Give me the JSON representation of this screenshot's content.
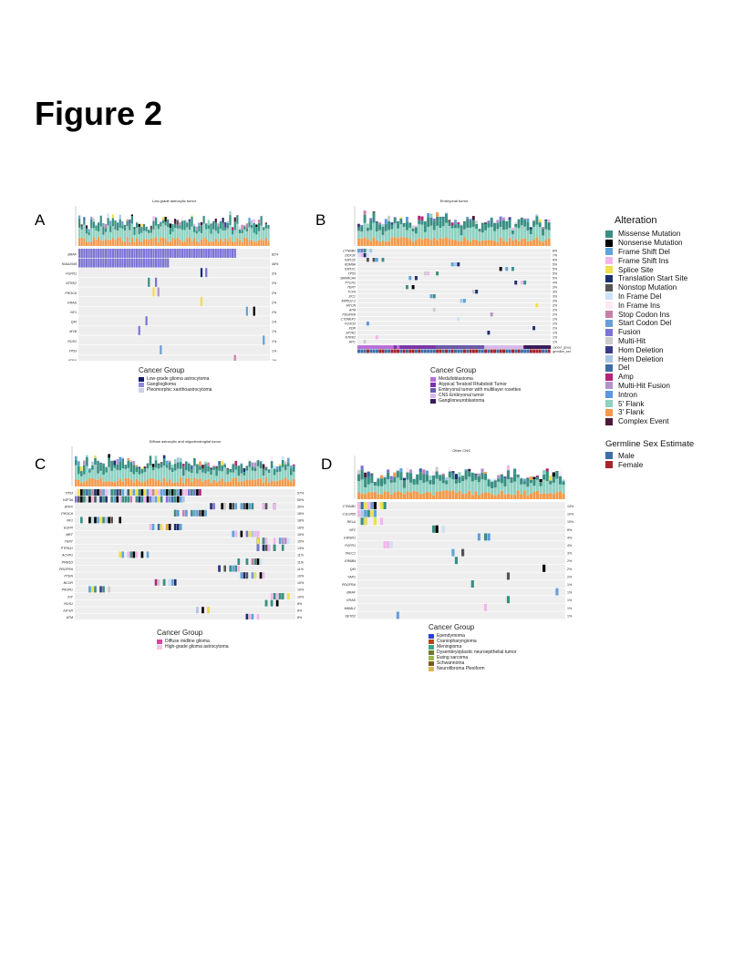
{
  "figure_title": "Figure 2",
  "alteration_legend": {
    "title": "Alteration",
    "items": [
      {
        "label": "Missense Mutation",
        "color": "#3a8f83"
      },
      {
        "label": "Nonsense Mutation",
        "color": "#000000"
      },
      {
        "label": "Frame Shift Del",
        "color": "#5fa3d8"
      },
      {
        "label": "Frame Shift Ins",
        "color": "#f3b6ea"
      },
      {
        "label": "Splice Site",
        "color": "#f0e04a"
      },
      {
        "label": "Translation Start Site",
        "color": "#1b2f6e"
      },
      {
        "label": "Nonstop Mutation",
        "color": "#555555"
      },
      {
        "label": "In Frame Del",
        "color": "#cde2f7"
      },
      {
        "label": "In Frame Ins",
        "color": "#fde8f4"
      },
      {
        "label": "Stop Codon Ins",
        "color": "#c97fa8"
      },
      {
        "label": "Start Codon Del",
        "color": "#6a9fd6"
      },
      {
        "label": "Fusion",
        "color": "#7b74d6"
      },
      {
        "label": "Multi-Hit",
        "color": "#cccccc"
      },
      {
        "label": "Hom Deletion",
        "color": "#3a3b8a"
      },
      {
        "label": "Hem Deletion",
        "color": "#a7c6e4"
      },
      {
        "label": "Del",
        "color": "#3c6ba8"
      },
      {
        "label": "Amp",
        "color": "#b2237a"
      },
      {
        "label": "Multi-Hit Fusion",
        "color": "#b392c9"
      },
      {
        "label": "Intron",
        "color": "#5a98e0"
      },
      {
        "label": "5' Flank",
        "color": "#8fd1c2"
      },
      {
        "label": "3' Flank",
        "color": "#f39a4c"
      },
      {
        "label": "Complex Event",
        "color": "#4b1a3a"
      }
    ]
  },
  "sex_legend": {
    "title": "Germline Sex Estimate",
    "items": [
      {
        "label": "Male",
        "color": "#3e6ea8"
      },
      {
        "label": "Female",
        "color": "#a4262c"
      }
    ]
  },
  "panels": [
    {
      "letter": "A",
      "title": "Low-grade astrocytic tumor",
      "n": 80,
      "genes": [
        "BRAF",
        "KIAA1549",
        "FGFR1",
        "NTRK2",
        "PIK3CA",
        "KRAS",
        "NF1",
        "QKI",
        "MYB",
        "ROS1",
        "TP53",
        "ATRX",
        "FGFR2"
      ],
      "freqs": [
        "82%",
        "48%",
        "3%",
        "2%",
        "2%",
        "2%",
        "2%",
        "1%",
        "1%",
        "1%",
        "1%",
        "1%",
        "1%"
      ],
      "track_labels": [
        "cancer_group",
        "germline_sex_estimate"
      ],
      "cancer_group_title": "Cancer Group",
      "cancer_groups": [
        {
          "label": "Low-grade glioma astrocytoma",
          "color": "#12196b"
        },
        {
          "label": "Ganglioglioma",
          "color": "#8f8ae0"
        },
        {
          "label": "Pleomorphic xanthoastrocytoma",
          "color": "#cfcfe6"
        }
      ]
    },
    {
      "letter": "B",
      "title": "Embryonal tumor",
      "n": 64,
      "genes": [
        "CTNNB1",
        "DDX3X",
        "KMT2D",
        "KDM6A",
        "KMT2C",
        "TP53",
        "SMARCA4",
        "PTCH1",
        "TERT",
        "TCF4",
        "ZIC1",
        "MIR512-2",
        "MYCN",
        "ATM",
        "PDGFRA",
        "CTDNEP1",
        "FOXO3",
        "KDR",
        "SPTA1",
        "NTRK2",
        "APC"
      ],
      "freqs": [
        "8%",
        "7%",
        "6%",
        "5%",
        "5%",
        "5%",
        "5%",
        "4%",
        "3%",
        "3%",
        "3%",
        "3%",
        "2%",
        "2%",
        "2%",
        "2%",
        "2%",
        "2%",
        "1%",
        "1%",
        "1%"
      ],
      "track_labels": [
        "cancer_group",
        "germline_sex_estimate"
      ],
      "cancer_group_title": "Cancer Group",
      "cancer_groups": [
        {
          "label": "Medulloblastoma",
          "color": "#b86fd6"
        },
        {
          "label": "Atypical Teratoid Rhabdoid Tumor",
          "color": "#7a35a8"
        },
        {
          "label": "Embryonal tumor with multilayer rosettes",
          "color": "#6a5aa8"
        },
        {
          "label": "CNS Embryonal tumor",
          "color": "#d8b8e8"
        },
        {
          "label": "Ganglioneuroblastoma",
          "color": "#3a1a5a"
        }
      ]
    },
    {
      "letter": "C",
      "title": "Diffuse astrocytic and oligodendroglial tumor",
      "n": 80,
      "genes": [
        "TP53",
        "H3F3A",
        "ATRX",
        "PIK3CA",
        "NF1",
        "EGFR",
        "MET",
        "TERT",
        "PTPN11",
        "ACVR1",
        "PPM1D",
        "PDGFRA",
        "PTEN",
        "BCOR",
        "PIK3R1",
        "KIT",
        "ROS1",
        "IGF1R",
        "ATM",
        "NTRK3"
      ],
      "freqs": [
        "57%",
        "50%",
        "30%",
        "18%",
        "18%",
        "16%",
        "15%",
        "15%",
        "13%",
        "11%",
        "11%",
        "11%",
        "10%",
        "10%",
        "10%",
        "10%",
        "8%",
        "8%",
        "8%",
        "7%"
      ],
      "track_labels": [
        "cancer_group",
        "germline_sex_estimate"
      ],
      "cancer_group_title": "Cancer Group",
      "cancer_groups": [
        {
          "label": "Diffuse midline glioma",
          "color": "#e0409a"
        },
        {
          "label": "High-grade glioma astrocytoma",
          "color": "#f7c6e4"
        }
      ]
    },
    {
      "letter": "D",
      "title": "Other CNS",
      "n": 64,
      "genes": [
        "CTNNB1",
        "C11orf95",
        "RELA",
        "NF2",
        "EWSR1",
        "FGFR1",
        "TACC1",
        "ERBB4",
        "QKI",
        "YAP1",
        "PDGFRA",
        "BRAF",
        "KRAS",
        "MAML2",
        "SETD2"
      ],
      "freqs": [
        "14%",
        "10%",
        "10%",
        "8%",
        "4%",
        "4%",
        "3%",
        "2%",
        "2%",
        "2%",
        "1%",
        "1%",
        "1%",
        "1%",
        "1%"
      ],
      "track_labels": [
        "cancer_group",
        "germline_sex_estimate"
      ],
      "cancer_group_title": "Cancer Group",
      "cancer_groups": [
        {
          "label": "Ependymoma",
          "color": "#2a3fd6"
        },
        {
          "label": "Craniopharyngioma",
          "color": "#b5451b"
        },
        {
          "label": "Meningioma",
          "color": "#3aa88a"
        },
        {
          "label": "Dysembryoplastic neuroepithelial tumor",
          "color": "#6b7a2a"
        },
        {
          "label": "Ewing sarcoma",
          "color": "#9bb84a"
        },
        {
          "label": "Schwannoma",
          "color": "#7a5a1a"
        },
        {
          "label": "Neurofibroma Plexiform",
          "color": "#d8b84a"
        }
      ]
    }
  ]
}
